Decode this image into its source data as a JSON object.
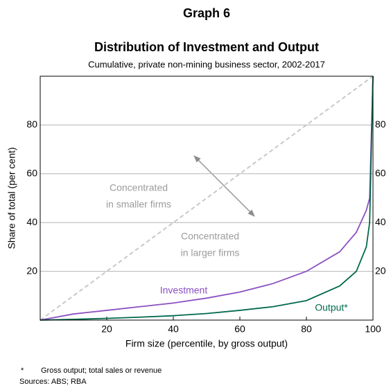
{
  "chart_data": {
    "type": "line",
    "heading": "Graph 6",
    "title": "Distribution of Investment and Output",
    "subtitle": "Cumulative, private non-mining business sector, 2002-2017",
    "x_label": "Firm size (percentile, by gross output)",
    "y_label": "Share of total (per cent)",
    "x": [
      0,
      10,
      20,
      30,
      40,
      50,
      60,
      70,
      80,
      90,
      95,
      98,
      99,
      100
    ],
    "series": [
      {
        "name": "Investment",
        "color": "#8b4fc0",
        "values": [
          0,
          2.5,
          4,
          5.5,
          7,
          9,
          11.5,
          15,
          20,
          28,
          36,
          45,
          50,
          100
        ]
      },
      {
        "name": "Output*",
        "color": "#00694c",
        "values": [
          0,
          0.3,
          0.7,
          1.2,
          1.8,
          2.7,
          4,
          5.5,
          8,
          14,
          20,
          30,
          40,
          100
        ]
      }
    ],
    "xlim": [
      0,
      100
    ],
    "xticks": [
      20,
      40,
      60,
      80,
      100
    ],
    "ylim": [
      0,
      100
    ],
    "yticks": [
      20,
      40,
      60,
      80
    ],
    "grid": true,
    "annotations": [
      [
        "Concentrated",
        "in smaller firms"
      ],
      [
        "Concentrated",
        "in larger firms"
      ]
    ],
    "footnotes": [
      "Gross output; total sales or revenue",
      "Sources: ABS; RBA"
    ],
    "footnote_marker": "*"
  }
}
